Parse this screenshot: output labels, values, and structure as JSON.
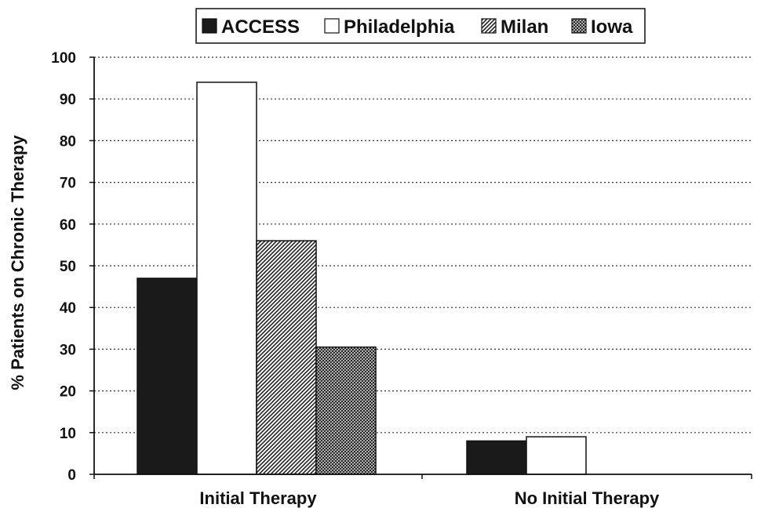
{
  "chart_data": {
    "type": "bar",
    "title": "",
    "xlabel": "",
    "ylabel": "% Patients on Chronic Therapy",
    "categories": [
      "Initial Therapy",
      "No Initial Therapy"
    ],
    "series": [
      {
        "name": "ACCESS",
        "values": [
          47,
          8
        ],
        "color": "#1a1a1a",
        "pattern": "solid"
      },
      {
        "name": "Philadelphia",
        "values": [
          94,
          9
        ],
        "color": "#ffffff",
        "pattern": "none"
      },
      {
        "name": "Milan",
        "values": [
          56,
          0
        ],
        "color": "#555555",
        "pattern": "diagonal"
      },
      {
        "name": "Iowa",
        "values": [
          30.5,
          0
        ],
        "color": "#666666",
        "pattern": "crosshatch"
      }
    ],
    "ylim": [
      0,
      100
    ],
    "yticks": [
      0,
      10,
      20,
      30,
      40,
      50,
      60,
      70,
      80,
      90,
      100
    ],
    "grid": true,
    "legend_position": "top"
  }
}
